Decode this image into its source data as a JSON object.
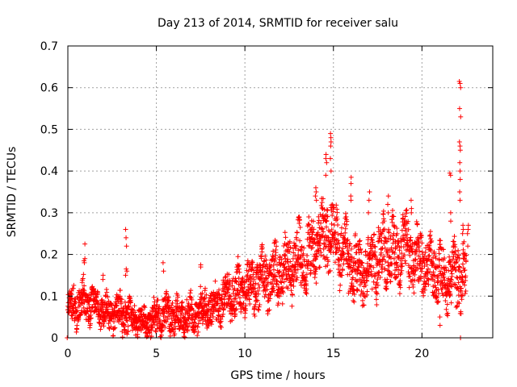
{
  "chart_data": {
    "type": "scatter",
    "title": "Day 213 of 2014, SRMTID for receiver salu",
    "xlabel": "GPS time / hours",
    "ylabel": "SRMTID / TECUs",
    "xlim": [
      0,
      24
    ],
    "ylim": [
      0,
      0.7
    ],
    "xticks": [
      0,
      5,
      10,
      15,
      20
    ],
    "xtick_labels": [
      "0",
      "5",
      "10",
      "15",
      "20"
    ],
    "yticks": [
      0,
      0.1,
      0.2,
      0.3,
      0.4,
      0.5,
      0.6,
      0.7
    ],
    "ytick_labels": [
      "0",
      "0.1",
      "0.2",
      "0.3",
      "0.4",
      "0.5",
      "0.6",
      "0.7"
    ],
    "grid": true,
    "marker": "+",
    "series": [
      {
        "name": "SRMTID salu",
        "color": "#ff0000",
        "envelope": {
          "hours": [
            0,
            0.5,
            1,
            1.5,
            2,
            2.5,
            3,
            3.5,
            4,
            4.5,
            5,
            5.5,
            6,
            6.5,
            7,
            7.5,
            8,
            8.5,
            9,
            9.5,
            10,
            10.5,
            11,
            11.5,
            12,
            12.5,
            13,
            13.5,
            14,
            14.5,
            15,
            15.5,
            16,
            16.5,
            17,
            17.5,
            18,
            18.5,
            19,
            19.5,
            20,
            20.5,
            21,
            21.5,
            22,
            22.5
          ],
          "center": [
            0.07,
            0.08,
            0.09,
            0.075,
            0.065,
            0.055,
            0.06,
            0.05,
            0.04,
            0.035,
            0.05,
            0.06,
            0.05,
            0.05,
            0.055,
            0.065,
            0.075,
            0.08,
            0.1,
            0.11,
            0.12,
            0.13,
            0.14,
            0.15,
            0.16,
            0.17,
            0.19,
            0.19,
            0.22,
            0.25,
            0.24,
            0.2,
            0.17,
            0.15,
            0.17,
            0.19,
            0.21,
            0.2,
            0.22,
            0.2,
            0.18,
            0.17,
            0.15,
            0.14,
            0.15,
            0.15
          ],
          "spread": [
            0.04,
            0.05,
            0.05,
            0.04,
            0.04,
            0.04,
            0.05,
            0.04,
            0.035,
            0.035,
            0.045,
            0.05,
            0.045,
            0.045,
            0.045,
            0.05,
            0.05,
            0.05,
            0.055,
            0.06,
            0.06,
            0.065,
            0.07,
            0.07,
            0.07,
            0.07,
            0.08,
            0.08,
            0.08,
            0.09,
            0.09,
            0.08,
            0.08,
            0.08,
            0.08,
            0.08,
            0.08,
            0.08,
            0.08,
            0.08,
            0.07,
            0.07,
            0.07,
            0.07,
            0.08,
            0.07
          ]
        },
        "samples_per_hour": 120,
        "seed": 213,
        "spikes": [
          {
            "x": 0.95,
            "values": [
              0.225,
              0.19,
              0.185,
              0.18
            ]
          },
          {
            "x": 2.0,
            "values": [
              0.15,
              0.14
            ]
          },
          {
            "x": 3.3,
            "values": [
              0.26,
              0.24,
              0.22,
              0.165,
              0.16,
              0.15
            ]
          },
          {
            "x": 5.4,
            "values": [
              0.18,
              0.16
            ]
          },
          {
            "x": 7.5,
            "values": [
              0.175,
              0.17
            ]
          },
          {
            "x": 14.0,
            "values": [
              0.36,
              0.35,
              0.34,
              0.33
            ]
          },
          {
            "x": 14.6,
            "values": [
              0.44,
              0.43,
              0.42,
              0.39
            ]
          },
          {
            "x": 14.85,
            "values": [
              0.49,
              0.48,
              0.47,
              0.46,
              0.43,
              0.4
            ]
          },
          {
            "x": 16.0,
            "values": [
              0.385,
              0.37,
              0.34,
              0.33
            ]
          },
          {
            "x": 17.0,
            "values": [
              0.35,
              0.33,
              0.3
            ]
          },
          {
            "x": 18.1,
            "values": [
              0.34,
              0.32,
              0.3
            ]
          },
          {
            "x": 19.4,
            "values": [
              0.33,
              0.31,
              0.3
            ]
          },
          {
            "x": 21.6,
            "values": [
              0.395,
              0.39,
              0.3,
              0.28
            ]
          },
          {
            "x": 22.15,
            "values": [
              0.615,
              0.61,
              0.6,
              0.55,
              0.53,
              0.47,
              0.46,
              0.45,
              0.42,
              0.4,
              0.38,
              0.35,
              0.33
            ]
          },
          {
            "x": 22.3,
            "values": [
              0.27,
              0.26,
              0.25
            ]
          },
          {
            "x": 22.6,
            "values": [
              0.27,
              0.26,
              0.25,
              0.22
            ]
          },
          {
            "x": 21.0,
            "values": [
              0.05,
              0.03
            ]
          },
          {
            "x": 22.2,
            "values": [
              0.0
            ]
          },
          {
            "x": 0.0,
            "values": [
              0.0
            ]
          }
        ]
      }
    ]
  }
}
